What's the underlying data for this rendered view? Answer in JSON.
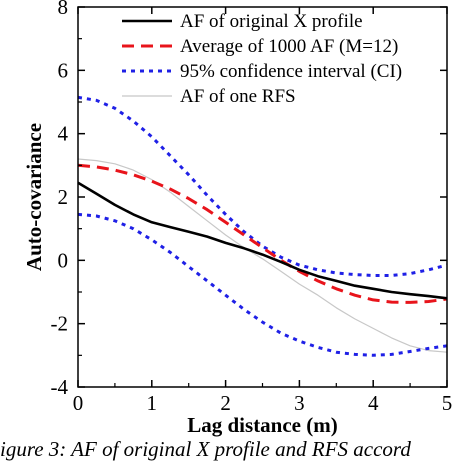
{
  "chart_data": {
    "type": "line",
    "xlabel": "Lag distance (m)",
    "ylabel": "Auto-covariance",
    "xlim": [
      0,
      5
    ],
    "ylim": [
      -4,
      8
    ],
    "xticks": [
      0,
      1,
      2,
      3,
      4,
      5
    ],
    "yticks": [
      -4,
      -2,
      0,
      2,
      4,
      6,
      8
    ],
    "grid": false,
    "legend_position": "top-right",
    "x": [
      0,
      0.25,
      0.5,
      0.75,
      1,
      1.25,
      1.5,
      1.75,
      2,
      2.25,
      2.5,
      2.75,
      3,
      3.25,
      3.5,
      3.75,
      4,
      4.25,
      4.5,
      4.75,
      5
    ],
    "series": [
      {
        "name": "AF of original X profile",
        "color": "#000000",
        "style": "solid",
        "values": [
          2.45,
          2.1,
          1.75,
          1.45,
          1.2,
          1.05,
          0.9,
          0.75,
          0.55,
          0.38,
          0.18,
          -0.05,
          -0.3,
          -0.5,
          -0.65,
          -0.8,
          -0.9,
          -1.0,
          -1.07,
          -1.13,
          -1.2
        ]
      },
      {
        "name": "Average of 1000 AF (M=12)",
        "color": "#e8141b",
        "style": "dashed",
        "values": [
          3.0,
          2.95,
          2.85,
          2.7,
          2.5,
          2.25,
          1.95,
          1.6,
          1.2,
          0.8,
          0.4,
          0.0,
          -0.35,
          -0.65,
          -0.9,
          -1.1,
          -1.25,
          -1.32,
          -1.33,
          -1.3,
          -1.22
        ]
      },
      {
        "name": "95% confidence interval (CI)",
        "color": "#1f20e6",
        "style": "dotted",
        "values": [
          5.15,
          5.05,
          4.8,
          4.4,
          3.9,
          3.3,
          2.7,
          2.05,
          1.45,
          0.9,
          0.45,
          0.1,
          -0.15,
          -0.3,
          -0.4,
          -0.45,
          -0.48,
          -0.48,
          -0.42,
          -0.3,
          -0.15
        ]
      },
      {
        "name": "",
        "color": "#1f20e6",
        "style": "dotted",
        "values": [
          1.45,
          1.4,
          1.25,
          1.0,
          0.65,
          0.25,
          -0.2,
          -0.65,
          -1.1,
          -1.55,
          -1.95,
          -2.3,
          -2.55,
          -2.75,
          -2.9,
          -2.97,
          -3.0,
          -2.97,
          -2.88,
          -2.78,
          -2.7
        ]
      },
      {
        "name": "AF of one RFS",
        "color": "#c8c8c8",
        "style": "solid",
        "values": [
          3.2,
          3.15,
          3.05,
          2.85,
          2.55,
          2.15,
          1.7,
          1.25,
          0.8,
          0.4,
          0.05,
          -0.35,
          -0.75,
          -1.1,
          -1.5,
          -1.85,
          -2.15,
          -2.45,
          -2.7,
          -2.85,
          -2.9
        ]
      }
    ]
  },
  "caption": "igure 3: AF of original X profile and RFS accord"
}
